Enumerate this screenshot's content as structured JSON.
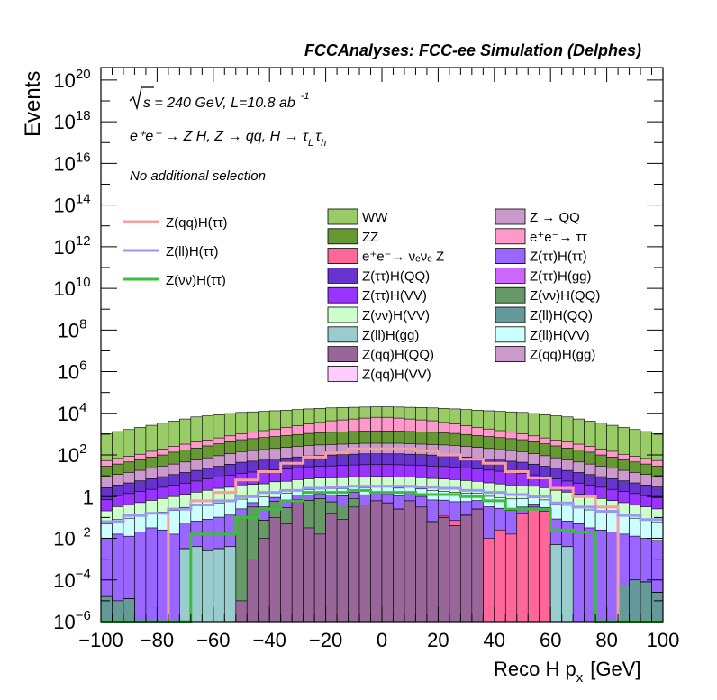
{
  "chart_data": {
    "type": "area",
    "title": "FCCAnalyses: FCC-ee Simulation (Delphes)",
    "xlabel": "Reco H p",
    "xlabel_sub": "x",
    "xlabel_unit": "[GeV]",
    "ylabel": "Events",
    "xlim": [
      -100,
      100
    ],
    "ylim_log10": [
      -6,
      20.6
    ],
    "yscale": "log",
    "x_ticks": [
      "−100",
      "−80",
      "−60",
      "−40",
      "−20",
      "0",
      "20",
      "40",
      "60",
      "80",
      "100"
    ],
    "x_tick_values": [
      -100,
      -80,
      -60,
      -40,
      -20,
      0,
      20,
      40,
      60,
      80,
      100
    ],
    "y_ticks": [
      {
        "exp": -6,
        "base": "10",
        "sup": "−6"
      },
      {
        "exp": -4,
        "base": "10",
        "sup": "−4"
      },
      {
        "exp": -2,
        "base": "10",
        "sup": "−2"
      },
      {
        "exp": 0,
        "base": "1",
        "sup": ""
      },
      {
        "exp": 2,
        "base": "10",
        "sup": "2"
      },
      {
        "exp": 4,
        "base": "10",
        "sup": "4"
      },
      {
        "exp": 6,
        "base": "10",
        "sup": "6"
      },
      {
        "exp": 8,
        "base": "10",
        "sup": "8"
      },
      {
        "exp": 10,
        "base": "10",
        "sup": "10"
      },
      {
        "exp": 12,
        "base": "10",
        "sup": "12"
      },
      {
        "exp": 14,
        "base": "10",
        "sup": "14"
      },
      {
        "exp": 16,
        "base": "10",
        "sup": "16"
      },
      {
        "exp": 18,
        "base": "10",
        "sup": "18"
      },
      {
        "exp": 20,
        "base": "10",
        "sup": "20"
      }
    ],
    "annotations": {
      "energy": "s = 240 GeV, L=10.8 ab",
      "energy_sup": "-1",
      "process_main": "e⁺e⁻ → Z H, Z → qq, H → τ",
      "process_sub1": "L",
      "process_mid": "τ",
      "process_sub2": "h",
      "selection": "No additional selection"
    },
    "signal_legend": [
      {
        "label": "Z(qq)H(ττ)",
        "color": "#f4a09c"
      },
      {
        "label": "Z(ll)H(ττ)",
        "color": "#9999f5"
      },
      {
        "label": "Z(νν)H(ττ)",
        "color": "#3cbd3c"
      }
    ],
    "background_legend": [
      {
        "label": "WW",
        "color": "#99cc66"
      },
      {
        "label": "Z → QQ",
        "color": "#cc99cc"
      },
      {
        "label": "ZZ",
        "color": "#669933"
      },
      {
        "label": "e⁺e⁻→ ττ",
        "color": "#ff99cc"
      },
      {
        "label": "e⁺e⁻→ νₑνₑ Z",
        "color": "#ff6699"
      },
      {
        "label": "Z(ττ)H(ττ)",
        "color": "#9966ff"
      },
      {
        "label": "Z(ττ)H(QQ)",
        "color": "#6633cc"
      },
      {
        "label": "Z(ττ)H(gg)",
        "color": "#cc66ff"
      },
      {
        "label": "Z(ττ)H(VV)",
        "color": "#9933ff"
      },
      {
        "label": "Z(νν)H(QQ)",
        "color": "#669966"
      },
      {
        "label": "Z(νν)H(VV)",
        "color": "#ccffcc"
      },
      {
        "label": "Z(ll)H(QQ)",
        "color": "#669999"
      },
      {
        "label": "Z(ll)H(gg)",
        "color": "#99cccc"
      },
      {
        "label": "Z(ll)H(VV)",
        "color": "#ccffff"
      },
      {
        "label": "Z(qq)H(QQ)",
        "color": "#996699"
      },
      {
        "label": "Z(qq)H(gg)",
        "color": "#cc99cc"
      },
      {
        "label": "Z(qq)H(VV)",
        "color": "#ffccff"
      }
    ],
    "stack_bins_x_low": [
      -100,
      -96,
      -92,
      -88,
      -84,
      -80,
      -76,
      -72,
      -68,
      -64,
      -60,
      -56,
      -52,
      -48,
      -44,
      -40,
      -36,
      -32,
      -28,
      -24,
      -20,
      -16,
      -12,
      -8,
      -4,
      0,
      4,
      8,
      12,
      16,
      20,
      24,
      28,
      32,
      36,
      40,
      44,
      48,
      52,
      56,
      60,
      64,
      68,
      72,
      76,
      80,
      84,
      88,
      92,
      96
    ],
    "stack_series": [
      {
        "name": "Z(ll)H(QQ)",
        "color": "#669999",
        "log10_values": [
          -4.8,
          -5,
          -4.9,
          -6,
          -6,
          -6,
          -6,
          -6,
          -6,
          -6,
          -6,
          -6,
          -6,
          -6,
          -6,
          -6,
          -6,
          -6,
          -6,
          -6,
          -6,
          -6,
          -6,
          -6,
          -6,
          -6,
          -6,
          -6,
          -6,
          -6,
          -6,
          -6,
          -6,
          -6,
          -6,
          -6,
          -6,
          -6,
          -6,
          -6,
          -6,
          -6,
          -6,
          -6,
          -6,
          -6,
          -4.3,
          -4,
          -4.1,
          -4.6
        ]
      },
      {
        "name": "Z(ll)H(gg)",
        "color": "#99cccc",
        "log10_values": [
          -6,
          -6,
          -6,
          -6,
          -6,
          -6,
          -6,
          -2.5,
          -2.4,
          -2.6,
          -2.5,
          -2.4,
          -6,
          -6,
          -6,
          -6,
          -6,
          -6,
          -6,
          -6,
          -6,
          -6,
          -6,
          -6,
          -6,
          -6,
          -6,
          -6,
          -6,
          -6,
          -6,
          -6,
          -6,
          -6,
          -6,
          -6,
          -6,
          -6,
          -6,
          -6,
          -2.3,
          -2.4,
          -6,
          -6,
          -6,
          -6,
          -6,
          -6,
          -6,
          -6
        ]
      },
      {
        "name": "Z(qq)H(QQ)",
        "color": "#996699",
        "log10_values": [
          -6,
          -6,
          -6,
          -6,
          -6,
          -6,
          -6,
          -6,
          -6,
          -6,
          -6,
          -6,
          -5,
          -3,
          -2,
          -1,
          -1.3,
          -0.2,
          -1.5,
          -1.8,
          -0.8,
          -1.1,
          -0.5,
          -0.4,
          -0.2,
          -0.3,
          -0.6,
          -0.2,
          -0.5,
          -1.2,
          -1,
          -1.4,
          -0.9,
          -0.6,
          -6,
          -6,
          -6,
          -6,
          -6,
          -6,
          -6,
          -6,
          -6,
          -6,
          -6,
          -6,
          -6,
          -6,
          -6,
          -6
        ]
      },
      {
        "name": "Z(νν)H(QQ)",
        "color": "#669966",
        "log10_values": [
          -6,
          -6,
          -6,
          -6,
          -6,
          -6,
          -6,
          -6,
          -6,
          -6,
          -6,
          -6,
          -1,
          -0.5,
          -1.2,
          -0.3,
          -0.6,
          -1,
          -0.2,
          -0.1,
          -0.4,
          -0.5,
          -0.3,
          -6,
          -6,
          -6,
          -6,
          -6,
          -6,
          -6,
          -6,
          -6,
          -6,
          -6,
          -6,
          -6,
          -6,
          -6,
          -6,
          -6,
          -6,
          -6,
          -6,
          -6,
          -6,
          -6,
          -6,
          -6,
          -6,
          -6
        ]
      },
      {
        "name": "e⁺e⁻→ νₑνₑ Z",
        "color": "#ff6699",
        "log10_values": [
          -6,
          -6,
          -6,
          -6,
          -6,
          -6,
          -6,
          -6,
          -6,
          -6,
          -6,
          -6,
          -6,
          -6,
          -6,
          -6,
          -6,
          -6,
          -6,
          -6,
          -6,
          -6,
          -6,
          -6,
          -6,
          -6,
          -6,
          -6,
          -6,
          -6,
          -1.8,
          -1.5,
          -2.4,
          -2.7,
          -2,
          -1.6,
          -1.8,
          -0.8,
          -0.5,
          -0.7,
          -6,
          -6,
          -6,
          -6,
          -6,
          -6,
          -6,
          -6,
          -6,
          -6
        ]
      },
      {
        "name": "Z(ττ)H(ττ)",
        "color": "#9966ff",
        "log10_values": [
          -2,
          -1.8,
          -1.9,
          -1.7,
          -1.5,
          -1.6,
          -1.8,
          -1.3,
          -1.2,
          -1.1,
          -1,
          -0.9,
          -0.8,
          -0.7,
          -0.6,
          -0.5,
          -0.4,
          -0.35,
          -0.3,
          -0.25,
          -0.2,
          -0.15,
          -0.1,
          -0.08,
          -0.05,
          -0.05,
          -0.08,
          -0.1,
          -0.15,
          -0.2,
          -0.25,
          -0.3,
          -0.35,
          -0.4,
          -0.5,
          -0.6,
          -0.7,
          -0.8,
          -0.9,
          -1,
          -1.1,
          -1.2,
          -1.3,
          -1.5,
          -1.6,
          -1.7,
          -1.8,
          -1.9,
          -2,
          -2.1
        ]
      },
      {
        "name": "Z(ll)H(VV)",
        "color": "#ccffff",
        "log10_values": [
          -1.4,
          -1.2,
          -1.1,
          -1,
          -0.9,
          -0.8,
          -0.7,
          -0.6,
          -0.5,
          -0.45,
          -0.4,
          -0.35,
          -0.3,
          -0.25,
          -0.2,
          -0.15,
          -0.1,
          -0.05,
          0,
          0.05,
          0.1,
          0.12,
          0.15,
          0.17,
          0.18,
          0.18,
          0.17,
          0.15,
          0.12,
          0.1,
          0.05,
          0,
          -0.05,
          -0.1,
          -0.15,
          -0.2,
          -0.25,
          -0.3,
          -0.35,
          -0.4,
          -0.45,
          -0.5,
          -0.6,
          -0.7,
          -0.8,
          -0.9,
          -1,
          -1.1,
          -1.2,
          -1.3
        ]
      },
      {
        "name": "Z(νν)H(VV)",
        "color": "#ccffcc",
        "log10_values": [
          -0.8,
          -0.6,
          -0.5,
          -0.4,
          -0.3,
          -0.2,
          -0.1,
          0,
          0.1,
          0.2,
          0.3,
          0.35,
          0.4,
          0.45,
          0.5,
          0.55,
          0.6,
          0.65,
          0.7,
          0.72,
          0.74,
          0.76,
          0.78,
          0.8,
          0.8,
          0.8,
          0.8,
          0.78,
          0.76,
          0.74,
          0.72,
          0.7,
          0.65,
          0.6,
          0.55,
          0.5,
          0.45,
          0.4,
          0.35,
          0.3,
          0.2,
          0.1,
          0,
          -0.1,
          -0.2,
          -0.3,
          -0.4,
          -0.5,
          -0.6,
          -0.7
        ]
      },
      {
        "name": "Z(ττ)H(VV)",
        "color": "#9933ff",
        "log10_values": [
          -0.3,
          -0.1,
          0,
          0.1,
          0.2,
          0.3,
          0.4,
          0.5,
          0.6,
          0.7,
          0.8,
          0.9,
          1,
          1.05,
          1.1,
          1.15,
          1.2,
          1.25,
          1.3,
          1.32,
          1.34,
          1.36,
          1.38,
          1.4,
          1.4,
          1.4,
          1.4,
          1.38,
          1.36,
          1.34,
          1.32,
          1.3,
          1.25,
          1.2,
          1.15,
          1.1,
          1.05,
          1,
          0.9,
          0.8,
          0.7,
          0.6,
          0.5,
          0.4,
          0.3,
          0.2,
          0.1,
          0,
          -0.1,
          -0.2
        ]
      },
      {
        "name": "Z(ττ)H(QQ)",
        "color": "#6633cc",
        "log10_values": [
          0.3,
          0.4,
          0.5,
          0.6,
          0.7,
          0.8,
          0.9,
          1,
          1.1,
          1.2,
          1.3,
          1.4,
          1.5,
          1.55,
          1.6,
          1.65,
          1.7,
          1.75,
          1.8,
          1.82,
          1.84,
          1.86,
          1.88,
          1.9,
          1.9,
          1.9,
          1.9,
          1.88,
          1.86,
          1.84,
          1.82,
          1.8,
          1.75,
          1.7,
          1.65,
          1.6,
          1.55,
          1.5,
          1.4,
          1.3,
          1.2,
          1.1,
          1,
          0.9,
          0.8,
          0.7,
          0.6,
          0.5,
          0.4,
          0.3
        ]
      },
      {
        "name": "Z(qq)H(gg)",
        "color": "#cc99cc",
        "log10_values": [
          0.8,
          0.9,
          1,
          1.1,
          1.2,
          1.3,
          1.4,
          1.5,
          1.6,
          1.7,
          1.8,
          1.9,
          2,
          2.05,
          2.1,
          2.15,
          2.2,
          2.25,
          2.3,
          2.32,
          2.34,
          2.36,
          2.38,
          2.4,
          2.4,
          2.4,
          2.4,
          2.38,
          2.36,
          2.34,
          2.32,
          2.3,
          2.25,
          2.2,
          2.15,
          2.1,
          2.05,
          2,
          1.9,
          1.8,
          1.7,
          1.6,
          1.5,
          1.4,
          1.3,
          1.2,
          1.1,
          1,
          0.9,
          0.8
        ]
      },
      {
        "name": "ZZ",
        "color": "#669933",
        "log10_values": [
          1.3,
          1.4,
          1.5,
          1.6,
          1.75,
          1.85,
          2,
          2.1,
          2.2,
          2.3,
          2.4,
          2.5,
          2.6,
          2.65,
          2.7,
          2.75,
          2.8,
          2.85,
          2.9,
          2.93,
          2.96,
          2.98,
          3,
          3.02,
          3.03,
          3.03,
          3.02,
          3,
          2.98,
          2.96,
          2.93,
          2.9,
          2.85,
          2.8,
          2.75,
          2.7,
          2.65,
          2.6,
          2.5,
          2.4,
          2.3,
          2.2,
          2.1,
          2,
          1.85,
          1.75,
          1.6,
          1.5,
          1.4,
          1.3
        ]
      },
      {
        "name": "e⁺e⁻→ ττ",
        "color": "#ff99cc",
        "log10_values": [
          1.4,
          1.5,
          1.6,
          1.7,
          1.85,
          1.95,
          2.1,
          2.2,
          2.3,
          2.4,
          2.5,
          2.6,
          2.7,
          2.8,
          2.9,
          3,
          3.1,
          3.2,
          3.3,
          3.4,
          3.5,
          3.55,
          3.6,
          3.65,
          3.7,
          3.7,
          3.65,
          3.6,
          3.55,
          3.5,
          3.4,
          3.3,
          3.2,
          3.1,
          3,
          2.9,
          2.8,
          2.7,
          2.6,
          2.5,
          2.4,
          2.3,
          2.2,
          2.1,
          1.95,
          1.85,
          1.7,
          1.6,
          1.5,
          1.4
        ]
      },
      {
        "name": "WW",
        "color": "#99cc66",
        "log10_values": [
          3,
          3.1,
          3.2,
          3.3,
          3.4,
          3.5,
          3.6,
          3.7,
          3.8,
          3.85,
          3.9,
          3.95,
          4,
          4.02,
          4.04,
          4.06,
          4.08,
          4.1,
          4.12,
          4.13,
          4.14,
          4.15,
          4.15,
          4.15,
          4.15,
          4.15,
          4.15,
          4.15,
          4.15,
          4.14,
          4.13,
          4.12,
          4.1,
          4.08,
          4.06,
          4.04,
          4.02,
          4,
          3.95,
          3.9,
          3.85,
          3.8,
          3.7,
          3.6,
          3.5,
          3.4,
          3.3,
          3.2,
          3.1,
          3
        ]
      }
    ],
    "signal_series": [
      {
        "name": "Z(qq)H(ττ)",
        "color": "#f4a09c",
        "bins_x_low": [
          -100,
          -92,
          -84,
          -76,
          -68,
          -60,
          -52,
          -44,
          -36,
          -28,
          -20,
          -12,
          -4,
          4,
          12,
          20,
          28,
          36,
          44,
          52,
          60,
          68,
          76,
          84,
          92
        ],
        "log10_values": [
          -6,
          -6,
          -6,
          -0.6,
          -0.2,
          0.2,
          0.8,
          1.2,
          1.6,
          1.9,
          2.1,
          2.3,
          2.3,
          2.3,
          2.2,
          2,
          1.8,
          1.6,
          1.2,
          0.9,
          0.4,
          0,
          -0.5,
          -6,
          -6
        ]
      },
      {
        "name": "Z(ll)H(ττ)",
        "color": "#9999f5",
        "bins_x_low": [
          -100,
          -92,
          -84,
          -76,
          -68,
          -60,
          -52,
          -44,
          -36,
          -28,
          -20,
          -12,
          -4,
          4,
          12,
          20,
          28,
          36,
          44,
          52,
          60,
          68,
          76,
          84,
          92
        ],
        "log10_values": [
          -1.2,
          -0.9,
          -0.8,
          -0.6,
          -0.4,
          -0.2,
          0,
          0.2,
          0.3,
          0.4,
          0.45,
          0.5,
          0.5,
          0.5,
          0.45,
          0.4,
          0.3,
          0.2,
          0.1,
          0,
          -0.3,
          -0.5,
          -0.7,
          -0.9,
          -1.1
        ]
      },
      {
        "name": "Z(νν)H(ττ)",
        "color": "#3cbd3c",
        "bins_x_low": [
          -100,
          -92,
          -84,
          -76,
          -68,
          -60,
          -52,
          -44,
          -36,
          -28,
          -20,
          -12,
          -4,
          4,
          12,
          20,
          28,
          36,
          44,
          52,
          60,
          68,
          76,
          84,
          92
        ],
        "log10_values": [
          -6,
          -6,
          -6,
          -6,
          -1.8,
          -1.8,
          -1,
          -0.6,
          -0.2,
          0.2,
          0.2,
          0.3,
          0.2,
          0.2,
          0.1,
          0.1,
          0,
          -0.2,
          -0.6,
          -0.6,
          -1.6,
          -1.7,
          -6,
          -6,
          -6
        ]
      }
    ]
  }
}
